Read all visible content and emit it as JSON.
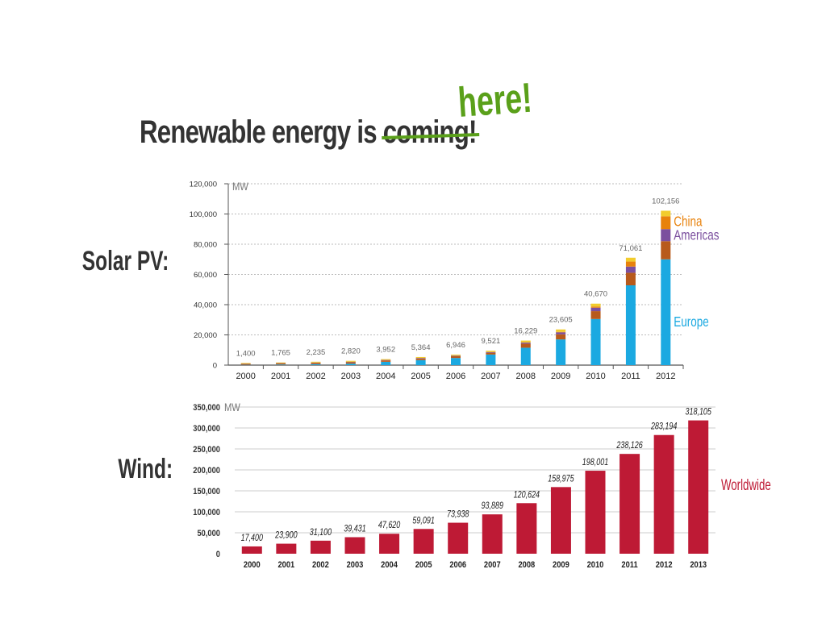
{
  "slide": {
    "title_prefix": "Renewable energy is ",
    "title_struck": "coming!",
    "title_correction": "here!",
    "solar_label": "Solar PV:",
    "wind_label": "Wind:"
  },
  "colors": {
    "text": "#333333",
    "accent_green": "#5aa01a",
    "solar_europe": "#1ba9e1",
    "solar_rest": "#b85a1c",
    "solar_americas": "#7b4f9e",
    "solar_china": "#e8820c",
    "solar_other": "#f2cc2c",
    "wind": "#be1a35"
  },
  "chart_data": [
    {
      "type": "bar",
      "stacked": true,
      "unit_label": "MW",
      "categories": [
        "2000",
        "2001",
        "2002",
        "2003",
        "2004",
        "2005",
        "2006",
        "2007",
        "2008",
        "2009",
        "2010",
        "2011",
        "2012"
      ],
      "totals": [
        1400,
        1765,
        2235,
        2820,
        3952,
        5364,
        6946,
        9521,
        16229,
        23605,
        40670,
        71061,
        102156
      ],
      "total_labels": [
        "1,400",
        "1,765",
        "2,235",
        "2,820",
        "3,952",
        "5,364",
        "6,946",
        "9,521",
        "16,229",
        "23,605",
        "40,670",
        "71,061",
        "102,156"
      ],
      "series": [
        {
          "name": "Europe",
          "color": "#1ba9e1",
          "values": [
            200,
            400,
            600,
            1000,
            2200,
            3300,
            4700,
            7000,
            11500,
            17000,
            30500,
            52800,
            70000
          ]
        },
        {
          "color": "#b85a1c",
          "values": [
            700,
            800,
            900,
            1000,
            900,
            1100,
            1200,
            1200,
            2700,
            3400,
            5200,
            8300,
            12000
          ]
        },
        {
          "name": "Americas",
          "color": "#7b4f9e",
          "values": [
            100,
            150,
            200,
            250,
            300,
            330,
            350,
            420,
            700,
            1300,
            2300,
            4100,
            8000
          ]
        },
        {
          "name": "China",
          "color": "#e8820c",
          "values": [
            0,
            0,
            0,
            0,
            0,
            0,
            10,
            50,
            100,
            300,
            800,
            3300,
            8500
          ]
        },
        {
          "color": "#f2cc2c",
          "values": [
            400,
            415,
            535,
            570,
            552,
            634,
            686,
            851,
            1229,
            1605,
            1870,
            2561,
            3656
          ]
        }
      ],
      "yticks": [
        0,
        20000,
        40000,
        60000,
        80000,
        100000,
        120000
      ],
      "ytick_labels": [
        "0",
        "20,000",
        "40,000",
        "60,000",
        "80,000",
        "100,000",
        "120,000"
      ],
      "ylim": [
        0,
        120000
      ],
      "grid": true
    },
    {
      "type": "bar",
      "unit_label": "MW",
      "categories": [
        "2000",
        "2001",
        "2002",
        "2003",
        "2004",
        "2005",
        "2006",
        "2007",
        "2008",
        "2009",
        "2010",
        "2011",
        "2012",
        "2013"
      ],
      "values": [
        17400,
        23900,
        31100,
        39431,
        47620,
        59091,
        73938,
        93889,
        120624,
        158975,
        198001,
        238126,
        283194,
        318105
      ],
      "value_labels": [
        "17,400",
        "23,900",
        "31,100",
        "39,431",
        "47,620",
        "59,091",
        "73,938",
        "93,889",
        "120,624",
        "158,975",
        "198,001",
        "238,126",
        "283,194",
        "318,105"
      ],
      "series_label": "Worldwide",
      "color": "#be1a35",
      "yticks": [
        0,
        50000,
        100000,
        150000,
        200000,
        250000,
        300000,
        350000
      ],
      "ytick_labels": [
        "0",
        "50,000",
        "100,000",
        "150,000",
        "200,000",
        "250,000",
        "300,000",
        "350,000"
      ],
      "ylim": [
        0,
        350000
      ],
      "grid": true
    }
  ]
}
